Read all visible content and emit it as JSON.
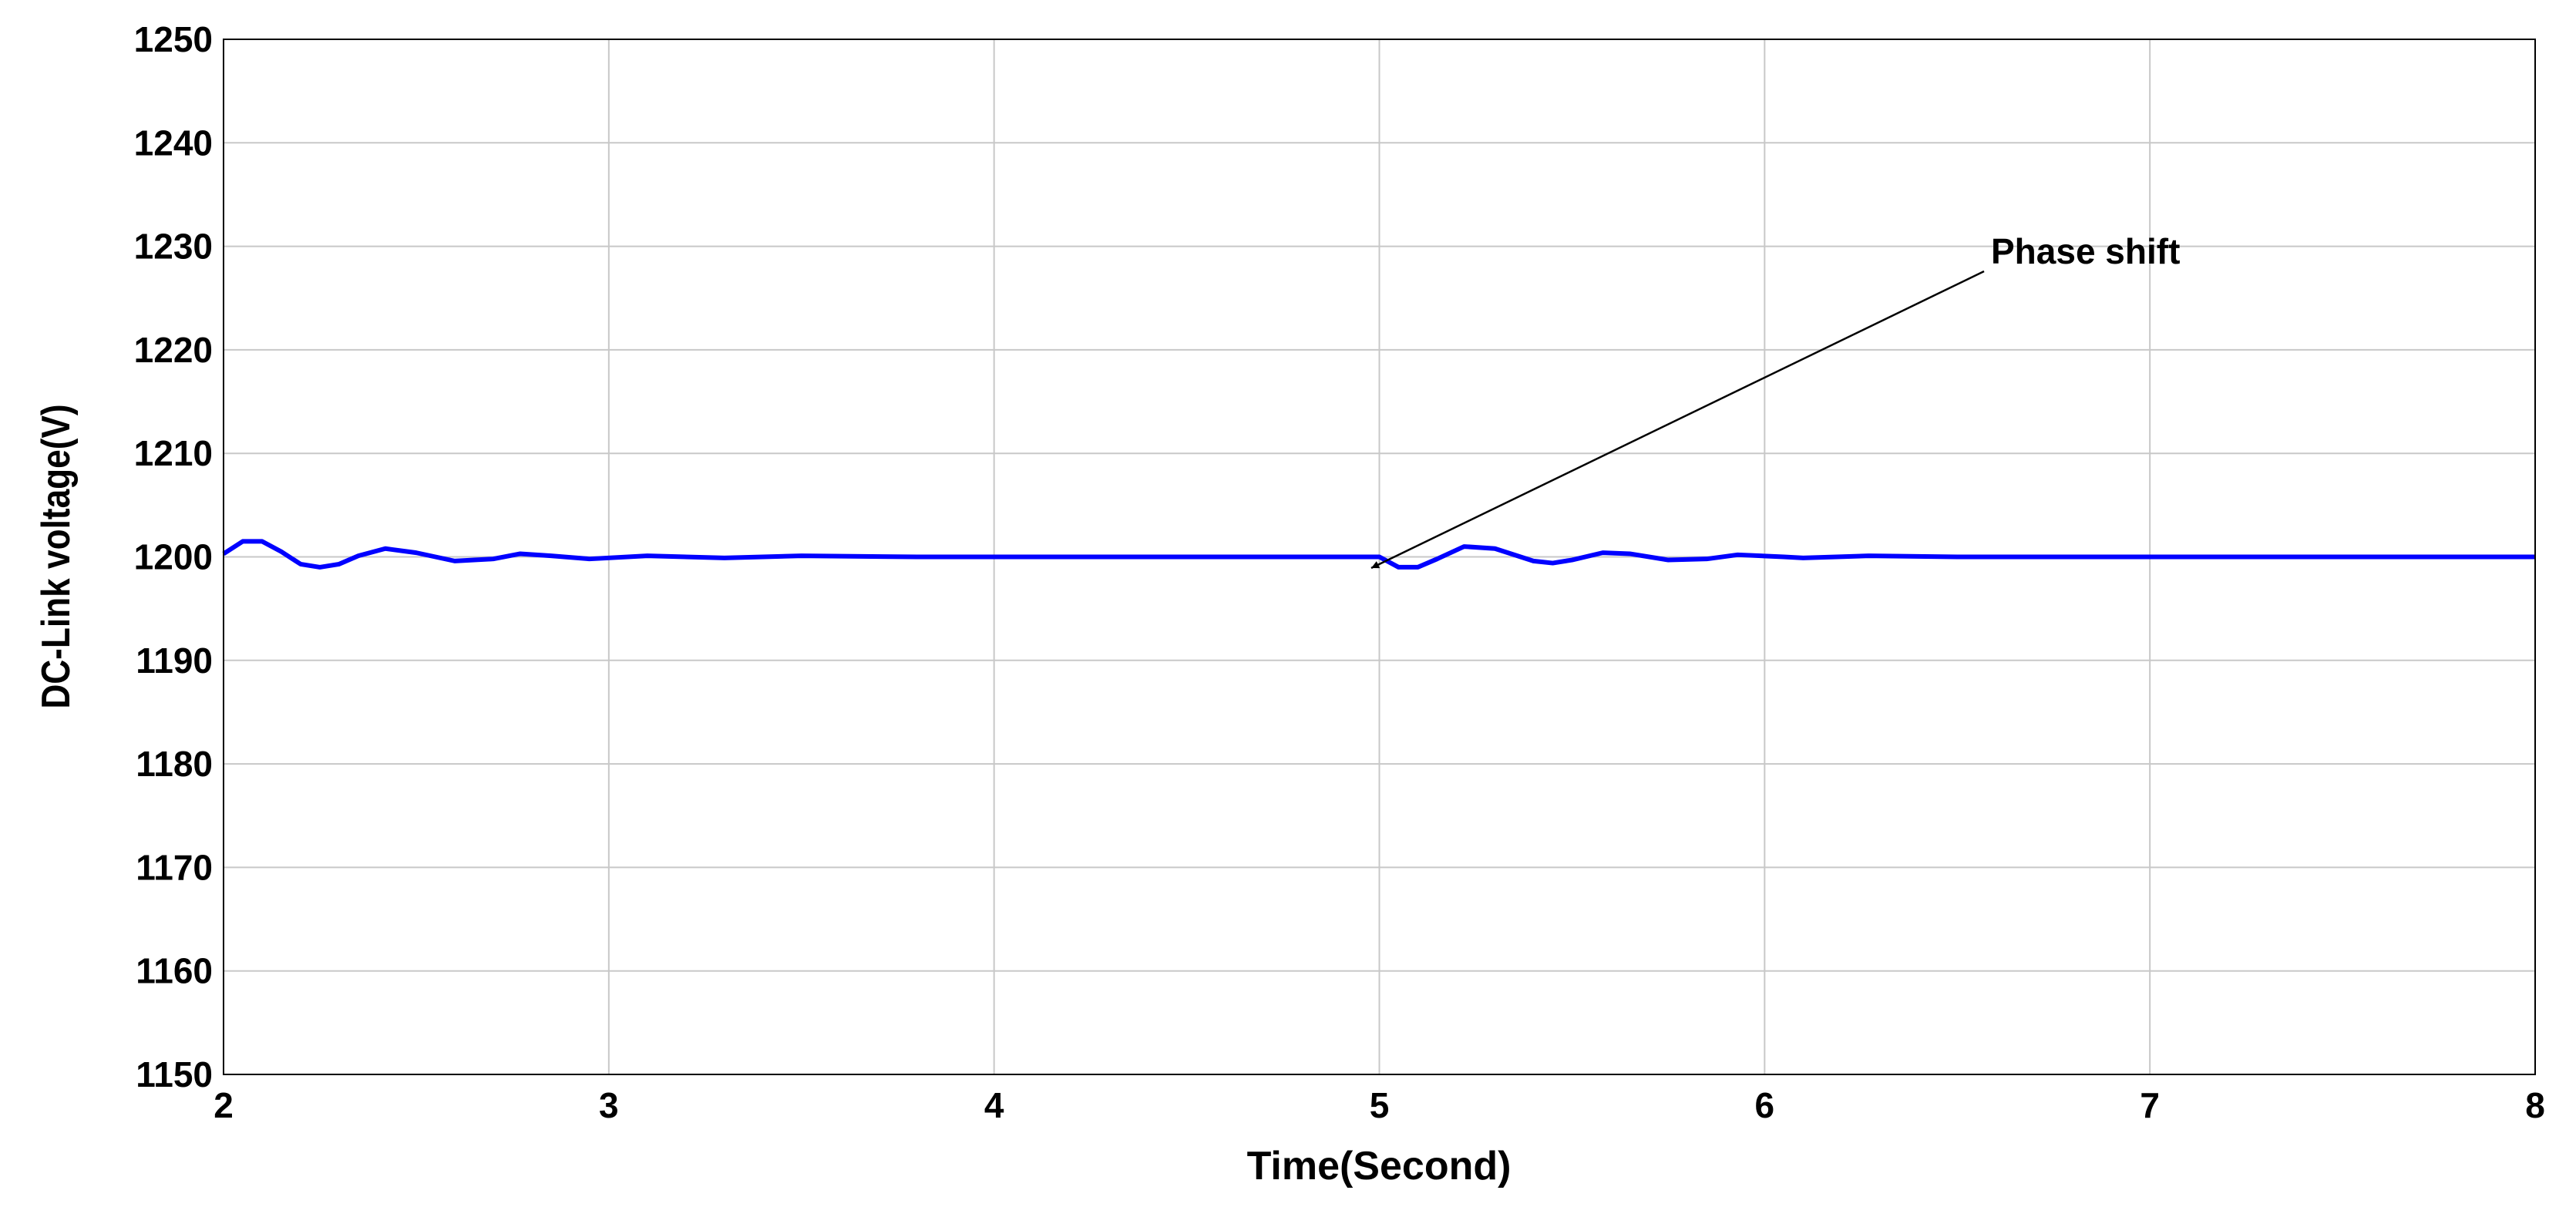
{
  "chart_data": {
    "type": "line",
    "xlabel": "Time(Second)",
    "ylabel": "DC-Link voltage(V)",
    "annotation": "Phase shift",
    "x": [
      2.0,
      2.05,
      2.1,
      2.15,
      2.2,
      2.25,
      2.3,
      2.35,
      2.42,
      2.5,
      2.6,
      2.7,
      2.77,
      2.85,
      2.95,
      3.1,
      3.3,
      3.5,
      3.8,
      4.0,
      4.5,
      5.0,
      5.05,
      5.1,
      5.15,
      5.22,
      5.3,
      5.4,
      5.45,
      5.5,
      5.58,
      5.65,
      5.75,
      5.85,
      5.93,
      6.05,
      6.1,
      6.27,
      6.5,
      7.0,
      8.0
    ],
    "values": [
      1200.3,
      1201.5,
      1201.5,
      1200.5,
      1199.3,
      1199.0,
      1199.3,
      1200.1,
      1200.8,
      1200.4,
      1199.6,
      1199.8,
      1200.3,
      1200.1,
      1199.8,
      1200.1,
      1199.9,
      1200.1,
      1200.0,
      1200.0,
      1200.0,
      1200.0,
      1199.0,
      1199.0,
      1199.8,
      1201.0,
      1200.8,
      1199.6,
      1199.4,
      1199.7,
      1200.4,
      1200.3,
      1199.7,
      1199.8,
      1200.2,
      1200.0,
      1199.9,
      1200.1,
      1200.0,
      1200.0,
      1200.0
    ],
    "color": "#0000ff",
    "xlim": [
      2,
      8
    ],
    "ylim": [
      1150,
      1250
    ],
    "xticks": [
      2,
      3,
      4,
      5,
      6,
      7,
      8
    ],
    "yticks": [
      1150,
      1160,
      1170,
      1180,
      1190,
      1200,
      1210,
      1220,
      1230,
      1240,
      1250
    ],
    "grid": true
  }
}
